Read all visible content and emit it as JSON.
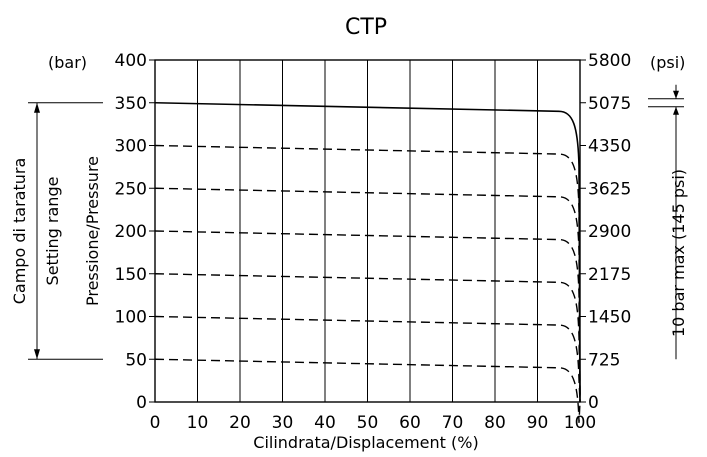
{
  "chart_data": {
    "type": "line",
    "title": "CTP",
    "xlabel": "Cilindrata/Displacement (%)",
    "ylabel": "Pressione/Pressure",
    "left_unit": "(bar)",
    "right_unit": "(psi)",
    "xlim": [
      0,
      100
    ],
    "ylim": [
      0,
      400
    ],
    "grid": true,
    "x_ticks": [
      "0",
      "10",
      "20",
      "30",
      "40",
      "50",
      "60",
      "70",
      "80",
      "90",
      "100"
    ],
    "y_ticks_bar": [
      "0",
      "50",
      "100",
      "150",
      "200",
      "250",
      "300",
      "350",
      "400"
    ],
    "y_ticks_psi": [
      "0",
      "725",
      "1450",
      "2175",
      "2900",
      "3625",
      "4350",
      "5075",
      "5800"
    ],
    "series": [
      {
        "style": "solid",
        "start": 350,
        "knee": 340,
        "knee_x": 95
      },
      {
        "style": "dashed",
        "start": 300,
        "knee": 290,
        "knee_x": 95
      },
      {
        "style": "dashed",
        "start": 250,
        "knee": 240,
        "knee_x": 95
      },
      {
        "style": "dashed",
        "start": 200,
        "knee": 190,
        "knee_x": 95
      },
      {
        "style": "dashed",
        "start": 150,
        "knee": 140,
        "knee_x": 95
      },
      {
        "style": "dashed",
        "start": 100,
        "knee": 90,
        "knee_x": 95
      },
      {
        "style": "dashed",
        "start": 50,
        "knee": 40,
        "knee_x": 95
      }
    ],
    "annotations": {
      "setting_range_it": "Campo di taratura",
      "setting_range_en": "Setting range",
      "setting_range_bar": [
        50,
        350
      ],
      "max_note": "10 bar max (145 psi)"
    }
  }
}
